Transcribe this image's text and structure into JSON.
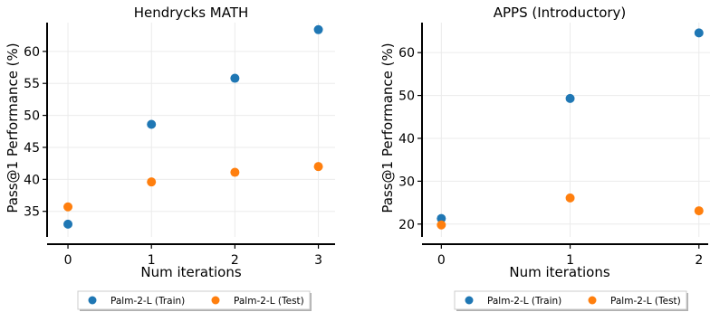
{
  "chart_data": [
    {
      "type": "scatter",
      "title": "Hendrycks MATH",
      "xlabel": "Num iterations",
      "ylabel": "Pass@1 Performance (%)",
      "x_ticks": [
        0,
        1,
        2,
        3
      ],
      "y_ticks": [
        35,
        40,
        45,
        50,
        55,
        60
      ],
      "xlim": [
        -0.25,
        3.2
      ],
      "ylim": [
        31,
        64.5
      ],
      "grid": true,
      "legend_position": "bottom-center",
      "series": [
        {
          "name": "Palm-2-L (Train)",
          "color": "#1f77b4",
          "x": [
            0,
            1,
            2,
            3
          ],
          "y": [
            33.0,
            48.6,
            55.8,
            63.4
          ]
        },
        {
          "name": "Palm-2-L (Test)",
          "color": "#ff7f0e",
          "x": [
            0,
            1,
            2,
            3
          ],
          "y": [
            35.7,
            39.6,
            41.1,
            42.0
          ]
        }
      ]
    },
    {
      "type": "scatter",
      "title": "APPS (Introductory)",
      "xlabel": "Num iterations",
      "ylabel": "Pass@1 Performance (%)",
      "x_ticks": [
        0,
        1,
        2
      ],
      "y_ticks": [
        20,
        30,
        40,
        50,
        60
      ],
      "xlim": [
        -0.15,
        2.1
      ],
      "ylim": [
        17,
        67
      ],
      "grid": true,
      "legend_position": "bottom-center",
      "series": [
        {
          "name": "Palm-2-L (Train)",
          "color": "#1f77b4",
          "x": [
            0,
            1,
            2
          ],
          "y": [
            21.3,
            49.3,
            64.6
          ]
        },
        {
          "name": "Palm-2-L (Test)",
          "color": "#ff7f0e",
          "x": [
            0,
            1,
            2
          ],
          "y": [
            19.8,
            26.1,
            23.1
          ]
        }
      ]
    }
  ]
}
